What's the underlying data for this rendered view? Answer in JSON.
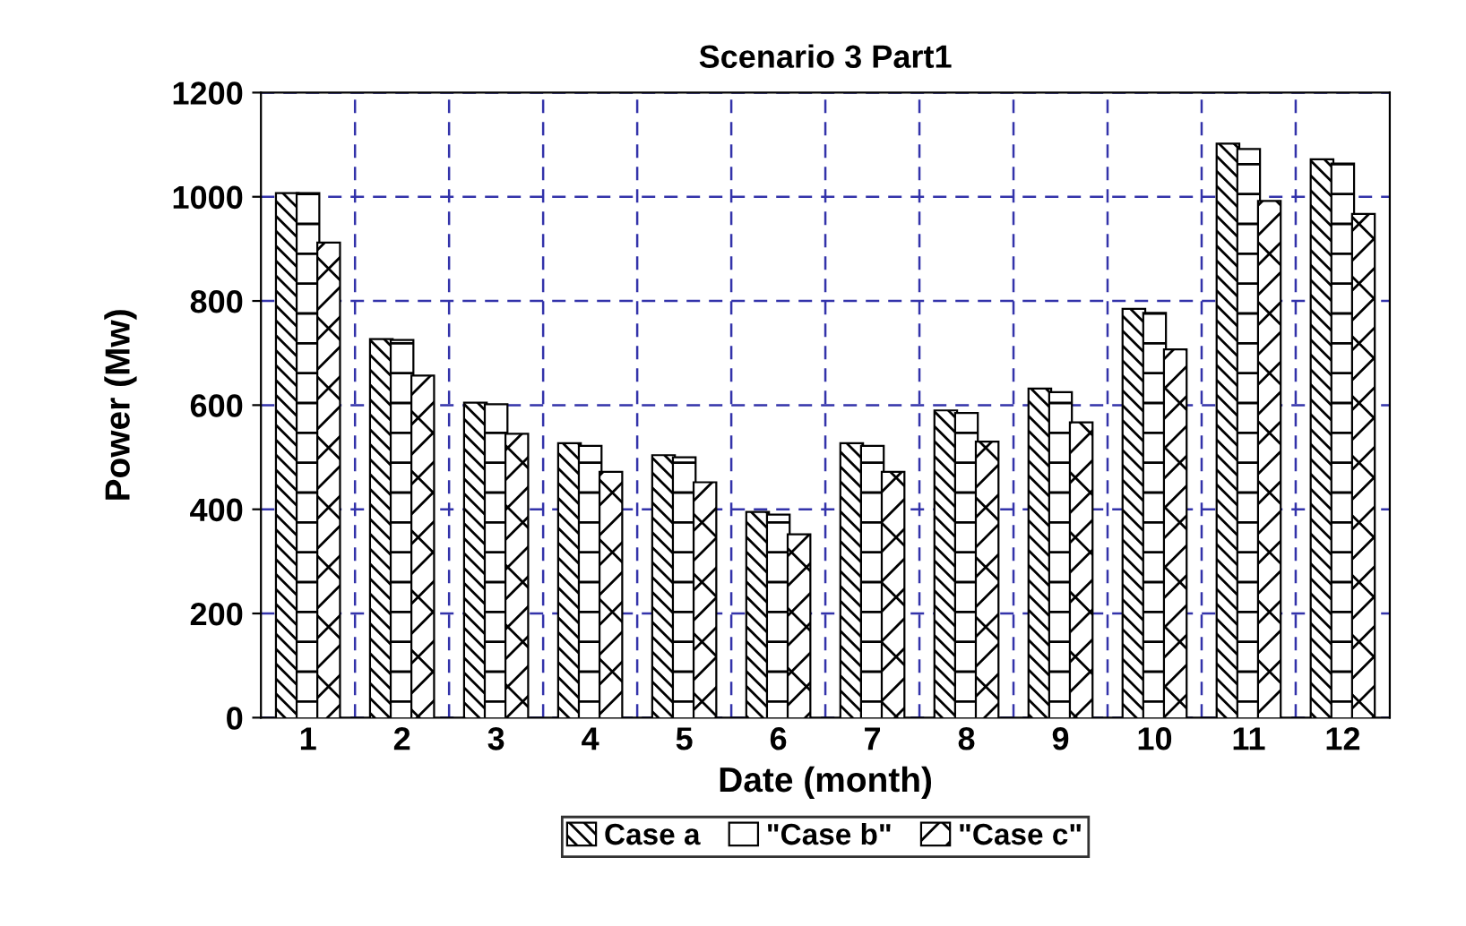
{
  "chart_data": {
    "type": "bar",
    "title": "Scenario 3 Part1",
    "xlabel": "Date (month)",
    "ylabel": "Power (Mw)",
    "categories": [
      "1",
      "2",
      "3",
      "4",
      "5",
      "6",
      "7",
      "8",
      "9",
      "10",
      "11",
      "12"
    ],
    "series": [
      {
        "name": "Case a",
        "color": "#ffffff",
        "values": [
          1005,
          725,
          603,
          525,
          502,
          393,
          525,
          588,
          630,
          783,
          1100,
          1070
        ]
      },
      {
        "name": "\"Case b\"",
        "color": "#ffffff",
        "values": [
          1005,
          723,
          600,
          520,
          498,
          388,
          520,
          583,
          623,
          775,
          1090,
          1062
        ]
      },
      {
        "name": "\"Case c\"",
        "color": "#ffffff",
        "values": [
          910,
          655,
          543,
          470,
          450,
          350,
          470,
          528,
          565,
          705,
          990,
          965
        ]
      }
    ],
    "ylim": [
      0,
      1200
    ],
    "yticks": [
      0,
      200,
      400,
      600,
      800,
      1000,
      1200
    ],
    "grid": true,
    "legend": "bottom"
  }
}
